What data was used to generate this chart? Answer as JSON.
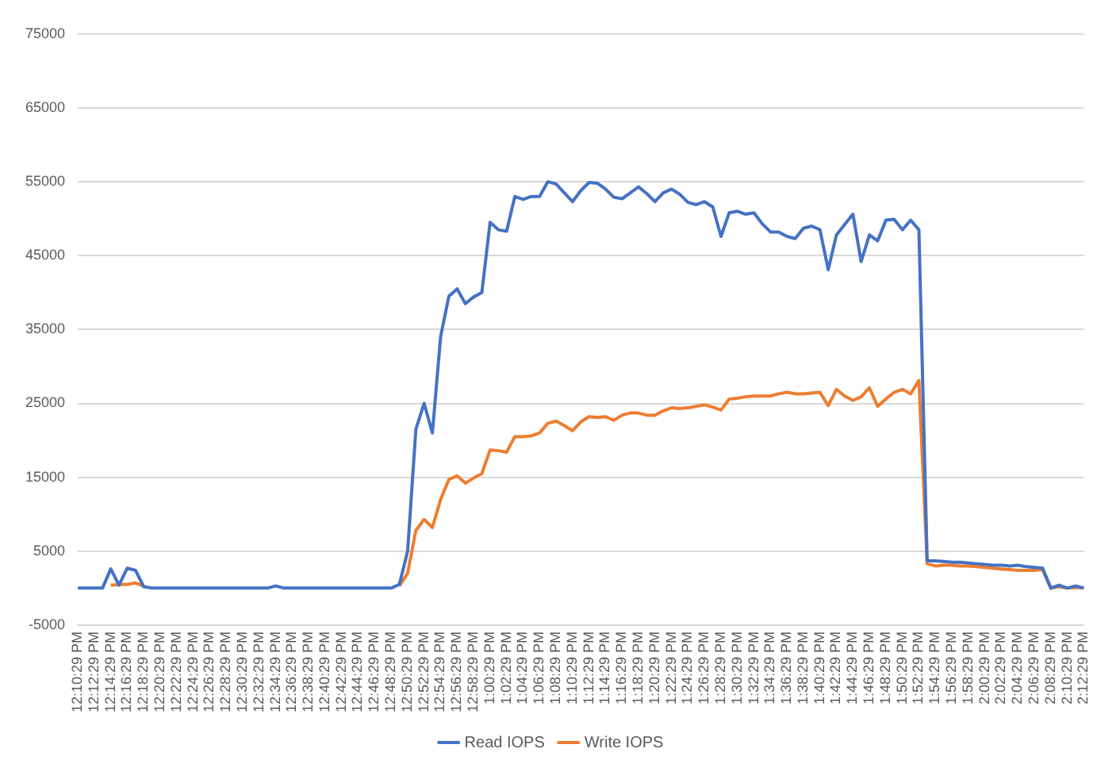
{
  "chart_data": {
    "type": "line",
    "categories": [
      "12:10:29 PM",
      null,
      "12:12:29 PM",
      null,
      "12:14:29 PM",
      null,
      "12:16:29 PM",
      null,
      "12:18:29 PM",
      null,
      "12:20:29 PM",
      null,
      "12:22:29 PM",
      null,
      "12:24:29 PM",
      null,
      "12:26:29 PM",
      null,
      "12:28:29 PM",
      null,
      "12:30:29 PM",
      null,
      "12:32:29 PM",
      null,
      "12:34:29 PM",
      null,
      "12:36:29 PM",
      null,
      "12:38:29 PM",
      null,
      "12:40:29 PM",
      null,
      "12:42:29 PM",
      null,
      "12:44:29 PM",
      null,
      "12:46:29 PM",
      null,
      "12:48:29 PM",
      null,
      "12:50:29 PM",
      null,
      "12:52:29 PM",
      null,
      "12:54:29 PM",
      null,
      "12:56:29 PM",
      null,
      "12:58:29 PM",
      null,
      "1:00:29 PM",
      null,
      "1:02:29 PM",
      null,
      "1:04:29 PM",
      null,
      "1:06:29 PM",
      null,
      "1:08:29 PM",
      null,
      "1:10:29 PM",
      null,
      "1:12:29 PM",
      null,
      "1:14:29 PM",
      null,
      "1:16:29 PM",
      null,
      "1:18:29 PM",
      null,
      "1:20:29 PM",
      null,
      "1:22:29 PM",
      null,
      "1:24:29 PM",
      null,
      "1:26:29 PM",
      null,
      "1:28:29 PM",
      null,
      "1:30:29 PM",
      null,
      "1:32:29 PM",
      null,
      "1:34:29 PM",
      null,
      "1:36:29 PM",
      null,
      "1:38:29 PM",
      null,
      "1:40:29 PM",
      null,
      "1:42:29 PM",
      null,
      "1:44:29 PM",
      null,
      "1:46:29 PM",
      null,
      "1:48:29 PM",
      null,
      "1:50:29 PM",
      null,
      "1:52:29 PM",
      null,
      "1:54:29 PM",
      null,
      "1:56:29 PM",
      null,
      "1:58:29 PM",
      null,
      "2:00:29 PM",
      null,
      "2:02:29 PM",
      null,
      "2:04:29 PM",
      null,
      "2:06:29 PM",
      null,
      "2:08:29 PM",
      null,
      "2:10:29 PM",
      null,
      "2:12:29 PM"
    ],
    "series": [
      {
        "name": "Read IOPS",
        "color": "#4472c4",
        "values": [
          0,
          0,
          0,
          0,
          2600,
          400,
          2700,
          2400,
          200,
          0,
          0,
          0,
          0,
          0,
          0,
          0,
          0,
          0,
          0,
          0,
          0,
          0,
          0,
          0,
          300,
          0,
          0,
          0,
          0,
          0,
          0,
          0,
          0,
          0,
          0,
          0,
          0,
          0,
          0,
          500,
          5000,
          21500,
          25000,
          21000,
          34000,
          39500,
          40500,
          38500,
          39400,
          40000,
          49500,
          48500,
          48300,
          53000,
          52600,
          53000,
          53000,
          55000,
          54700,
          53500,
          52300,
          53800,
          54900,
          54800,
          54000,
          52900,
          52700,
          53500,
          54300,
          53400,
          52300,
          53500,
          54000,
          53300,
          52200,
          51900,
          52300,
          51600,
          47600,
          50800,
          51000,
          50600,
          50800,
          49300,
          48200,
          48200,
          47600,
          47300,
          48700,
          49000,
          48500,
          43100,
          47800,
          49200,
          50600,
          44200,
          47800,
          47000,
          49800,
          49900,
          48500,
          49800,
          48500,
          3700,
          3700,
          3600,
          3500,
          3500,
          3400,
          3300,
          3200,
          3100,
          3100,
          3000,
          3100,
          2900,
          2800,
          2700,
          0,
          400,
          0,
          300,
          0
        ]
      },
      {
        "name": "Write IOPS",
        "color": "#ed7d31",
        "values": [
          null,
          null,
          null,
          null,
          400,
          500,
          500,
          700,
          300,
          null,
          null,
          null,
          null,
          null,
          null,
          null,
          null,
          null,
          null,
          null,
          null,
          null,
          null,
          null,
          null,
          null,
          null,
          null,
          null,
          null,
          null,
          null,
          null,
          null,
          null,
          null,
          null,
          null,
          null,
          300,
          2000,
          7800,
          9300,
          8200,
          12000,
          14700,
          15200,
          14200,
          14900,
          15500,
          18700,
          18600,
          18400,
          20500,
          20500,
          20600,
          21000,
          22300,
          22600,
          22000,
          21300,
          22500,
          23200,
          23100,
          23200,
          22700,
          23400,
          23700,
          23700,
          23400,
          23400,
          24000,
          24400,
          24300,
          24400,
          24600,
          24800,
          24500,
          24100,
          25600,
          25700,
          25900,
          26000,
          26000,
          26000,
          26300,
          26500,
          26300,
          26300,
          26400,
          26500,
          24700,
          26900,
          26000,
          25400,
          25900,
          27100,
          24600,
          25600,
          26500,
          26900,
          26300,
          28100,
          3300,
          3000,
          3100,
          3100,
          3000,
          3000,
          2900,
          2800,
          2700,
          2600,
          2500,
          2400,
          2400,
          2400,
          2500,
          0,
          200,
          0,
          100,
          0
        ]
      }
    ],
    "ylim": [
      -5000,
      75000
    ],
    "yticks": [
      -5000,
      5000,
      15000,
      25000,
      35000,
      45000,
      55000,
      65000,
      75000
    ],
    "grid": "y",
    "legend": "bottom",
    "marker": "none",
    "line_style": "solid"
  }
}
